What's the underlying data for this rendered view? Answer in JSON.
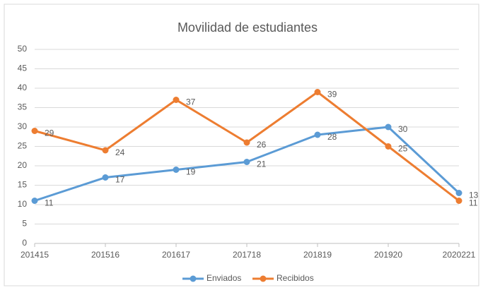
{
  "chart_data": {
    "type": "line",
    "title": "Movilidad de estudiantes",
    "categories": [
      "201415",
      "201516",
      "201617",
      "201718",
      "201819",
      "201920",
      "2020221"
    ],
    "series": [
      {
        "name": "Enviados",
        "color": "#5b9bd5",
        "values": [
          11,
          17,
          19,
          21,
          28,
          30,
          13
        ]
      },
      {
        "name": "Recibidos",
        "color": "#ed7d31",
        "values": [
          29,
          24,
          37,
          26,
          39,
          25,
          11
        ]
      }
    ],
    "ylim": [
      0,
      50
    ],
    "yticks": [
      0,
      5,
      10,
      15,
      20,
      25,
      30,
      35,
      40,
      45,
      50
    ],
    "grid": true,
    "legend": "bottom"
  }
}
